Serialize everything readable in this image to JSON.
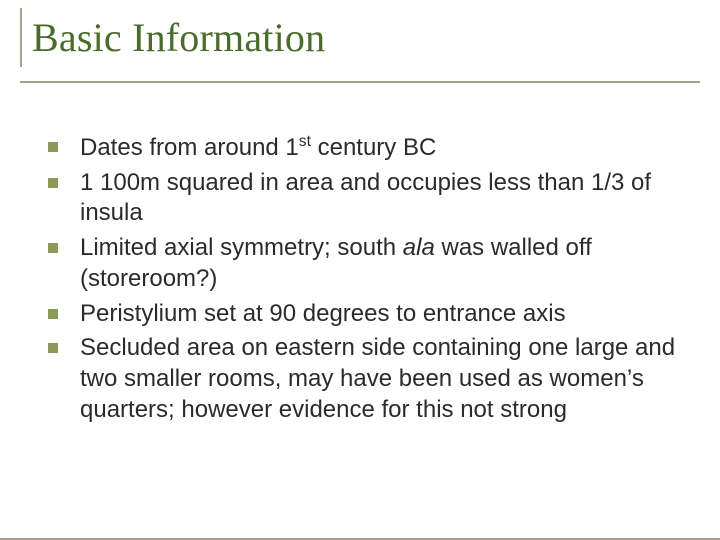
{
  "slide": {
    "title": "Basic Information",
    "title_color": "#4a6b2a",
    "title_fontsize": 40,
    "title_font": "Georgia, serif",
    "rule_color": "#a9a088",
    "bullet_color": "#8a9a5b",
    "body_fontsize": 24,
    "body_color": "#2b2b2b",
    "background_color": "#ffffff",
    "bullets": [
      {
        "html": "Dates from around 1<sup>st</sup> century BC"
      },
      {
        "html": "1 100m squared in area and occupies less than 1/3 of insula"
      },
      {
        "html": "Limited axial symmetry; south <span class=\"ital\">ala</span> was walled off (storeroom?)"
      },
      {
        "html": "Peristylium set at 90 degrees to entrance axis"
      },
      {
        "html": "Secluded area on eastern side containing one large and two smaller rooms, may have been used as women’s quarters; however evidence for this not strong"
      }
    ]
  }
}
